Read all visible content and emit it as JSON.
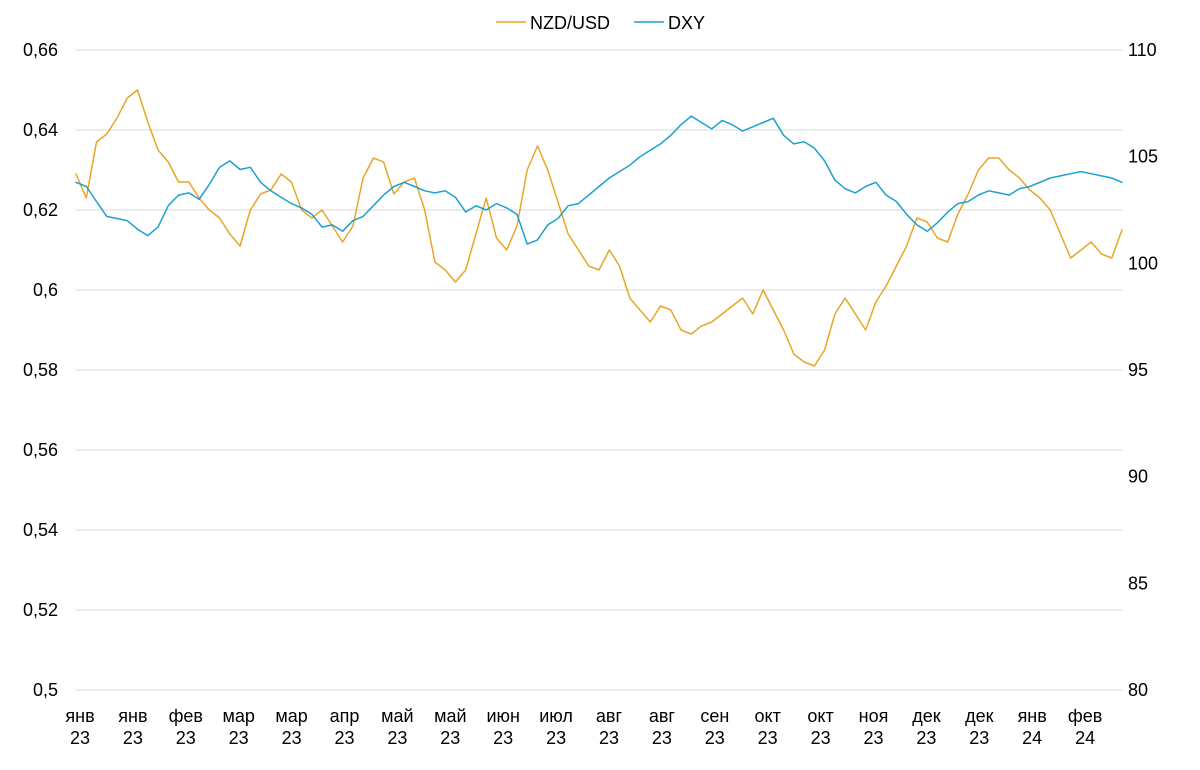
{
  "chart_data": {
    "type": "line",
    "left_axis": {
      "min": 0.5,
      "max": 0.66,
      "ticks": [
        "0,5",
        "0,52",
        "0,54",
        "0,56",
        "0,58",
        "0,6",
        "0,62",
        "0,64",
        "0,66"
      ]
    },
    "right_axis": {
      "min": 80,
      "max": 110,
      "ticks": [
        "80",
        "85",
        "90",
        "95",
        "100",
        "105",
        "110"
      ]
    },
    "x_tick_labels": [
      [
        "янв",
        "23"
      ],
      [
        "янв",
        "23"
      ],
      [
        "фев",
        "23"
      ],
      [
        "мар",
        "23"
      ],
      [
        "мар",
        "23"
      ],
      [
        "апр",
        "23"
      ],
      [
        "май",
        "23"
      ],
      [
        "май",
        "23"
      ],
      [
        "июн",
        "23"
      ],
      [
        "июл",
        "23"
      ],
      [
        "авг",
        "23"
      ],
      [
        "авг",
        "23"
      ],
      [
        "сен",
        "23"
      ],
      [
        "окт",
        "23"
      ],
      [
        "окт",
        "23"
      ],
      [
        "ноя",
        "23"
      ],
      [
        "дек",
        "23"
      ],
      [
        "дек",
        "23"
      ],
      [
        "янв",
        "24"
      ],
      [
        "фев",
        "24"
      ]
    ],
    "grid": true,
    "legend": "top-center",
    "series": [
      {
        "name": "NZD/USD",
        "axis": "left",
        "color": "#E8A628",
        "values": [
          0.629,
          0.623,
          0.637,
          0.639,
          0.643,
          0.648,
          0.65,
          0.642,
          0.635,
          0.632,
          0.627,
          0.627,
          0.623,
          0.62,
          0.618,
          0.614,
          0.611,
          0.62,
          0.624,
          0.625,
          0.629,
          0.627,
          0.62,
          0.618,
          0.62,
          0.616,
          0.612,
          0.616,
          0.628,
          0.633,
          0.632,
          0.624,
          0.627,
          0.628,
          0.62,
          0.607,
          0.605,
          0.602,
          0.605,
          0.614,
          0.623,
          0.613,
          0.61,
          0.616,
          0.63,
          0.636,
          0.63,
          0.622,
          0.614,
          0.61,
          0.606,
          0.605,
          0.61,
          0.606,
          0.598,
          0.595,
          0.592,
          0.596,
          0.595,
          0.59,
          0.589,
          0.591,
          0.592,
          0.594,
          0.596,
          0.598,
          0.594,
          0.6,
          0.595,
          0.59,
          0.584,
          0.582,
          0.581,
          0.585,
          0.594,
          0.598,
          0.594,
          0.59,
          0.597,
          0.601,
          0.606,
          0.611,
          0.618,
          0.617,
          0.613,
          0.612,
          0.619,
          0.624,
          0.63,
          0.633,
          0.633,
          0.63,
          0.628,
          0.625,
          0.623,
          0.62,
          0.614,
          0.608,
          0.61,
          0.612,
          0.609,
          0.608,
          0.615
        ]
      },
      {
        "name": "DXY",
        "axis": "right",
        "color": "#1BA1CF",
        "values": [
          103.8,
          103.6,
          102.9,
          102.2,
          102.1,
          102.0,
          101.6,
          101.3,
          101.7,
          102.7,
          103.2,
          103.3,
          103.0,
          103.7,
          104.5,
          104.8,
          104.4,
          104.5,
          103.8,
          103.4,
          103.1,
          102.8,
          102.6,
          102.3,
          101.7,
          101.8,
          101.5,
          102.0,
          102.2,
          102.7,
          103.2,
          103.6,
          103.8,
          103.6,
          103.4,
          103.3,
          103.4,
          103.1,
          102.4,
          102.7,
          102.5,
          102.8,
          102.6,
          102.3,
          100.9,
          101.1,
          101.8,
          102.1,
          102.7,
          102.8,
          103.2,
          103.6,
          104.0,
          104.3,
          104.6,
          105.0,
          105.3,
          105.6,
          106.0,
          106.5,
          106.9,
          106.6,
          106.3,
          106.7,
          106.5,
          106.2,
          106.4,
          106.6,
          106.8,
          106.0,
          105.6,
          105.7,
          105.4,
          104.8,
          103.9,
          103.5,
          103.3,
          103.6,
          103.8,
          103.2,
          102.9,
          102.3,
          101.8,
          101.5,
          101.9,
          102.4,
          102.8,
          102.9,
          103.2,
          103.4,
          103.3,
          103.2,
          103.5,
          103.6,
          103.8,
          104.0,
          104.1,
          104.2,
          104.3,
          104.2,
          104.1,
          104.0,
          103.8
        ]
      }
    ]
  }
}
